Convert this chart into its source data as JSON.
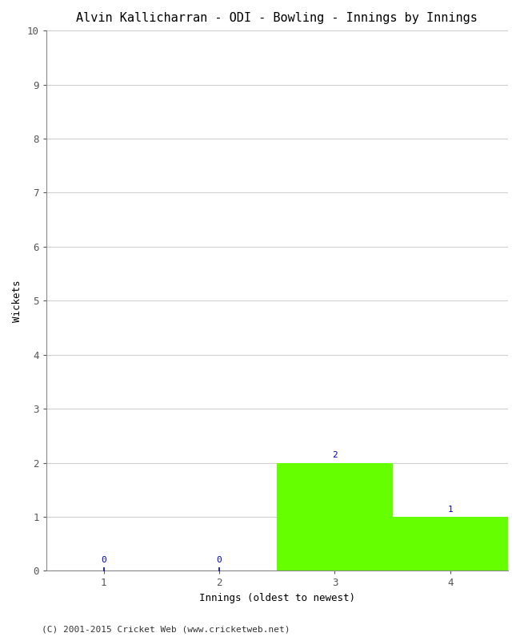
{
  "title": "Alvin Kallicharran - ODI - Bowling - Innings by Innings",
  "xlabel": "Innings (oldest to newest)",
  "ylabel": "Wickets",
  "categories": [
    1,
    2,
    3,
    4
  ],
  "values": [
    0,
    0,
    2,
    1
  ],
  "bar_color_nonzero": "#66ff00",
  "ylim": [
    0,
    10
  ],
  "yticks": [
    0,
    1,
    2,
    3,
    4,
    5,
    6,
    7,
    8,
    9,
    10
  ],
  "xticks": [
    1,
    2,
    3,
    4
  ],
  "xlim": [
    0.5,
    4.5
  ],
  "background_color": "#ffffff",
  "footer": "(C) 2001-2015 Cricket Web (www.cricketweb.net)",
  "annotation_color": "#0000cc",
  "title_fontsize": 11,
  "axis_label_fontsize": 9,
  "tick_fontsize": 9,
  "annotation_fontsize": 8,
  "footer_fontsize": 8,
  "grid_color": "#d0d0d0"
}
